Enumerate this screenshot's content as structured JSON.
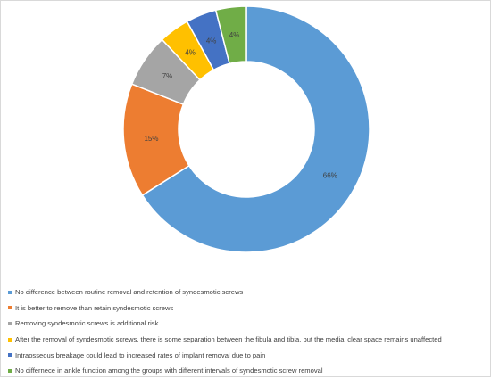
{
  "chart_data": {
    "type": "pie",
    "variant": "donut",
    "legend_position": "bottom",
    "title": "",
    "slices": [
      {
        "label": "No difference between routine removal and retention of syndesmotic screws",
        "value": 66,
        "display": "66%",
        "color": "#5B9BD5"
      },
      {
        "label": "It is better to remove than retain syndesmotic screws",
        "value": 15,
        "display": "15%",
        "color": "#ED7D31"
      },
      {
        "label": "Removing syndesmotic screws is additional risk",
        "value": 7,
        "display": "7%",
        "color": "#A5A5A5"
      },
      {
        "label": "After the removal of syndesmotic screws, there is some separation between the fibula and tibia, but the medial clear space remains unaffected",
        "value": 4,
        "display": "4%",
        "color": "#FFC000"
      },
      {
        "label": "Intraosseous breakage could lead to increased rates of implant removal due to pain",
        "value": 4,
        "display": "4%",
        "color": "#4472C4"
      },
      {
        "label": "No differnece in ankle function among the groups with different intervals of syndesmotic screw removal",
        "value": 4,
        "display": "4%",
        "color": "#70AD47"
      }
    ]
  }
}
